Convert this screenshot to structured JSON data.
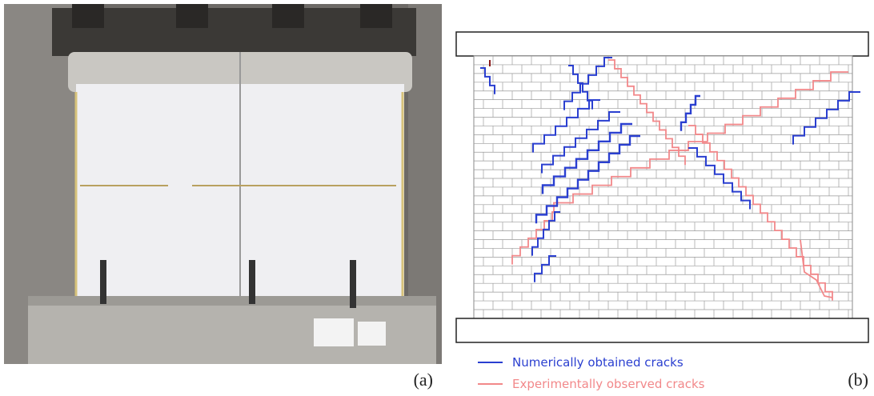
{
  "panels": [
    {
      "label": "(a)"
    },
    {
      "label": "(b)"
    }
  ],
  "legend": [
    {
      "label": "Numerically obtained cracks",
      "color": "#2a3fd0"
    },
    {
      "label": "Experimentally observed cracks",
      "color": "#f2888a"
    }
  ]
}
